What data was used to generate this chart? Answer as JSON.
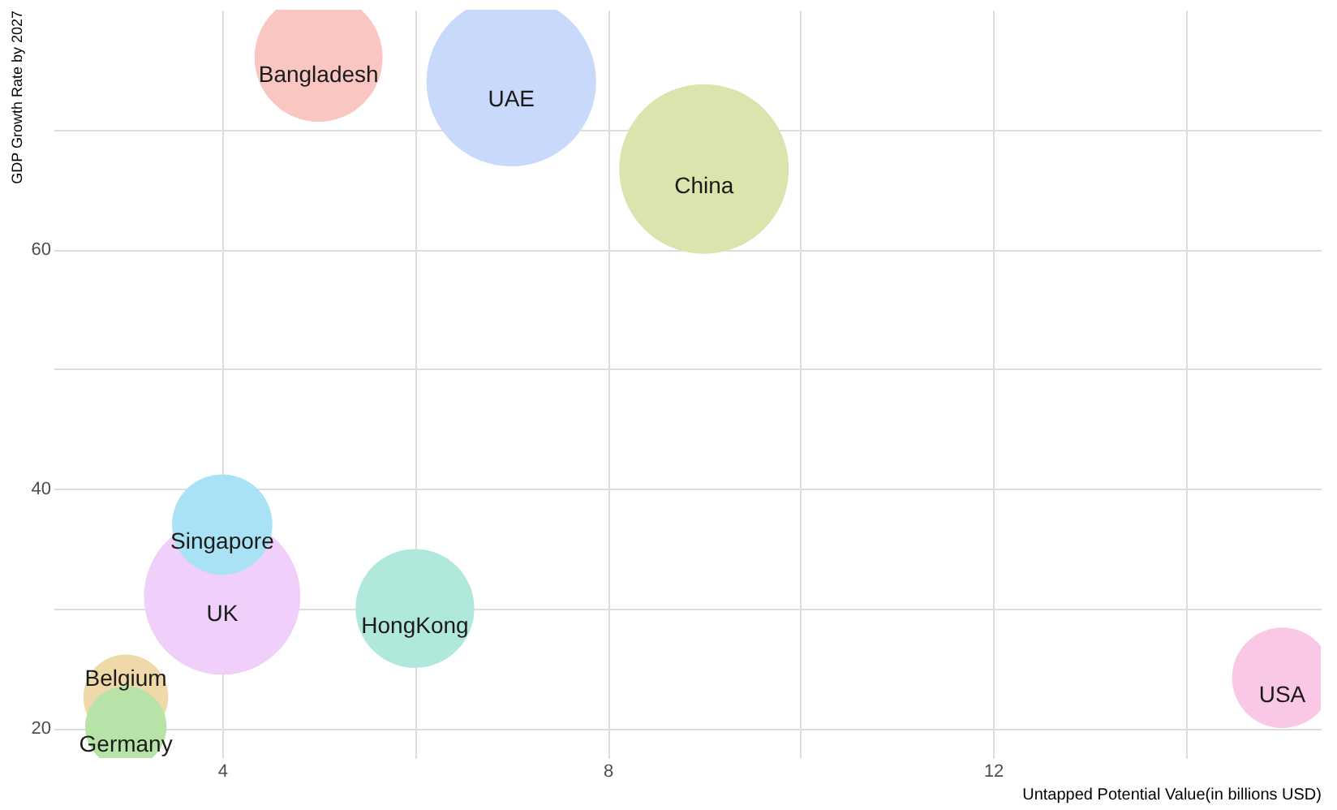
{
  "chart_data": {
    "type": "bubble",
    "xlabel": "Untapped Potential Value(in billions USD)",
    "ylabel": "GDP Growth Rate by 2027",
    "xlim": [
      2.25,
      15.4
    ],
    "ylim": [
      17.5,
      80
    ],
    "xticks": [
      4,
      {
        "value": 6,
        "label": null
      },
      8,
      {
        "value": 10,
        "label": null
      },
      12,
      {
        "value": 14,
        "label": null
      }
    ],
    "yticks": [
      20,
      {
        "value": 30,
        "label": null
      },
      40,
      {
        "value": 50,
        "label": null
      },
      60,
      {
        "value": 70,
        "label": null
      }
    ],
    "grid": true,
    "legend": false,
    "series": [
      {
        "name": "Bangladesh",
        "color": "#f9c6c1",
        "x": [
          5
        ],
        "values": [
          76
        ],
        "sizes": [
          0.57
        ]
      },
      {
        "name": "UAE",
        "color": "#c9d9fb",
        "x": [
          7
        ],
        "values": [
          74
        ],
        "sizes": [
          1
        ]
      },
      {
        "name": "China",
        "color": "#dde3ad",
        "x": [
          9
        ],
        "values": [
          66.7
        ],
        "sizes": [
          1
        ]
      },
      {
        "name": "Singapore",
        "color": "#a9e2f5",
        "x": [
          4
        ],
        "values": [
          37
        ],
        "sizes": [
          0.35
        ]
      },
      {
        "name": "UK",
        "color": "#f0cffa",
        "x": [
          4
        ],
        "values": [
          31
        ],
        "sizes": [
          0.85
        ]
      },
      {
        "name": "HongKong",
        "color": "#b0e9db",
        "x": [
          6
        ],
        "values": [
          30
        ],
        "sizes": [
          0.49
        ]
      },
      {
        "name": "Belgium",
        "color": "#efd9a8",
        "x": [
          3
        ],
        "values": [
          22.6
        ],
        "sizes": [
          0.25
        ]
      },
      {
        "name": "Germany",
        "color": "#b7e3a9",
        "x": [
          3
        ],
        "values": [
          20.1
        ],
        "sizes": [
          0.23
        ]
      },
      {
        "name": "USA",
        "color": "#fac8e6",
        "x": [
          15
        ],
        "values": [
          24.2
        ],
        "sizes": [
          0.35
        ]
      }
    ]
  }
}
